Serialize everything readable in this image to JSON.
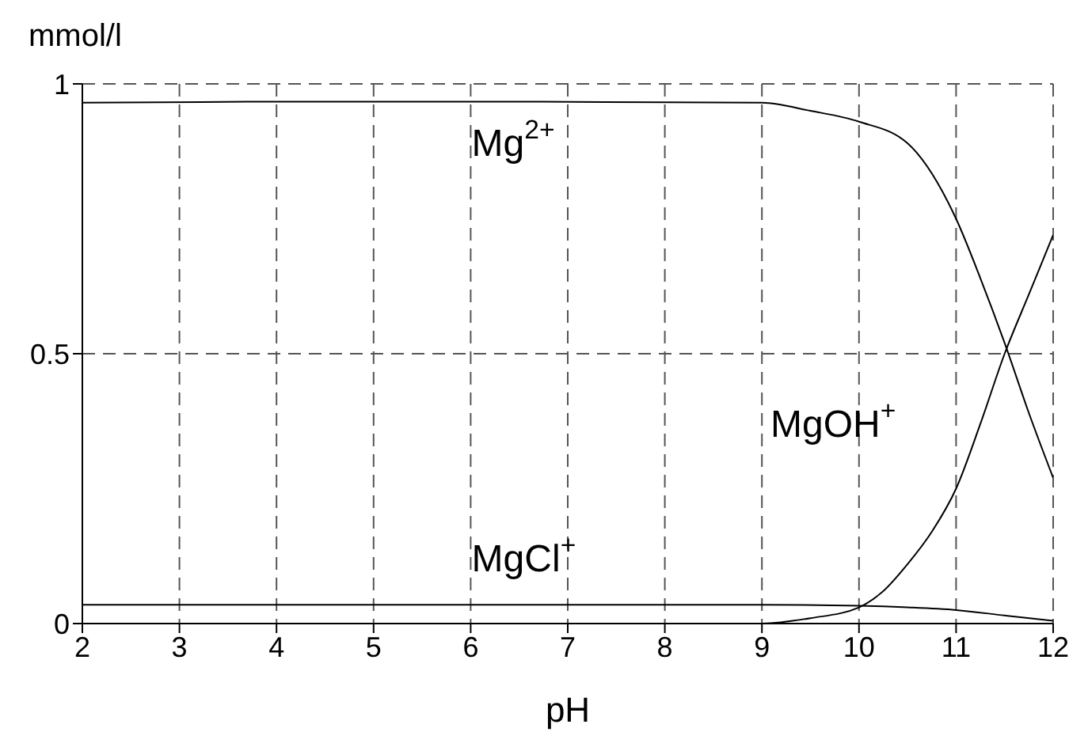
{
  "chart_data": {
    "type": "line",
    "xlabel": "pH",
    "ylabel": "mmol/l",
    "xlim": [
      2,
      12
    ],
    "xticks": [
      2,
      3,
      4,
      5,
      6,
      7,
      8,
      9,
      10,
      11,
      12
    ],
    "ylim": [
      0,
      1
    ],
    "yticks": [
      0,
      0.5,
      1
    ],
    "grid": true,
    "marker": "none",
    "line_style": "solid",
    "series": [
      {
        "name": "Mg$^{2+}$",
        "color": "#000000",
        "x": [
          2,
          4,
          6,
          8,
          9,
          9.5,
          10,
          10.5,
          11,
          11.25,
          11.5,
          11.75,
          12
        ],
        "values": [
          0.965,
          0.967,
          0.967,
          0.966,
          0.965,
          0.95,
          0.93,
          0.89,
          0.75,
          0.64,
          0.52,
          0.39,
          0.27
        ]
      },
      {
        "name": "MgOH$^{+}$",
        "color": "#000000",
        "x": [
          2,
          8,
          9,
          9.5,
          10,
          10.25,
          10.5,
          10.75,
          11,
          11.25,
          11.5,
          11.75,
          12
        ],
        "values": [
          0,
          0,
          0,
          0.01,
          0.03,
          0.06,
          0.11,
          0.17,
          0.25,
          0.37,
          0.5,
          0.61,
          0.72
        ]
      },
      {
        "name": "MgCl$^{+}$",
        "color": "#000000",
        "x": [
          2,
          4,
          6,
          8,
          9,
          10,
          10.5,
          11,
          11.5,
          12
        ],
        "values": [
          0.035,
          0.035,
          0.035,
          0.035,
          0.035,
          0.033,
          0.03,
          0.025,
          0.015,
          0.005
        ]
      }
    ]
  }
}
